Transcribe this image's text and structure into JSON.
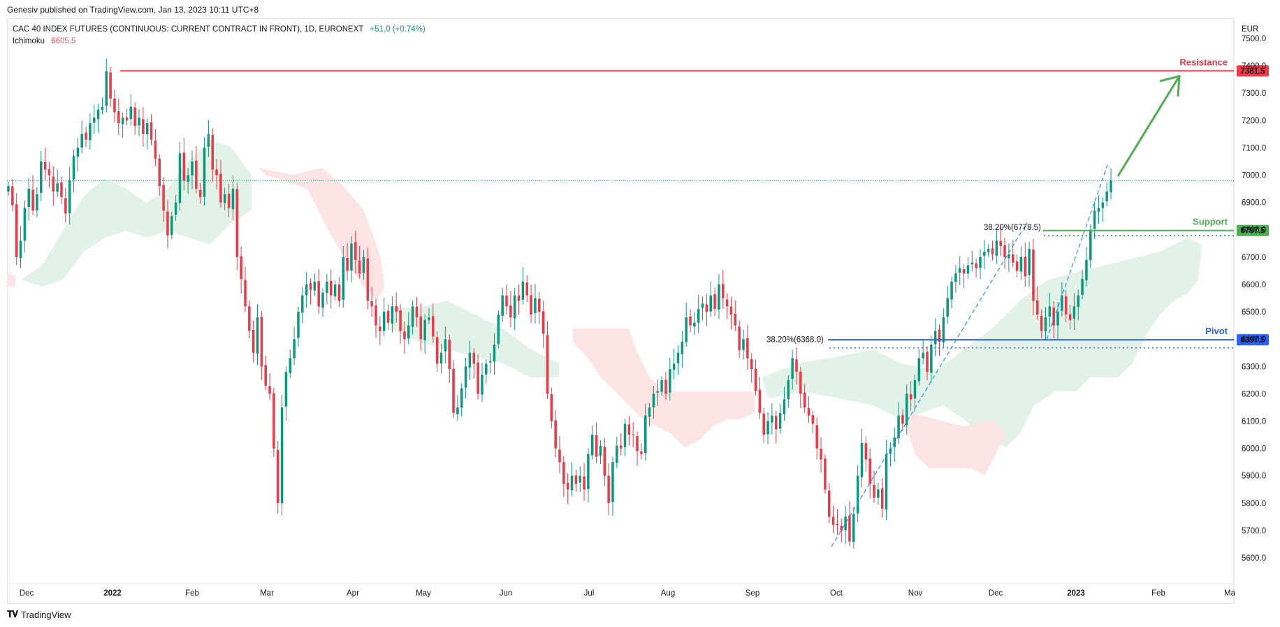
{
  "header": {
    "published": "Genesiv published on TradingView.com, Jan 13, 2023 10:11 UTC+8"
  },
  "legend": {
    "symbol": "CAC 40 INDEX FUTURES (CONTINUOUS: CURRENT CONTRACT IN FRONT), 1D, EURONEXT",
    "change": "+51.0 (+0.74%)",
    "indicator_name": "Ichimoku",
    "indicator_value": "6605.5"
  },
  "footer": {
    "brand": "TradingView",
    "logo": "tradingview-logo-icon"
  },
  "colors": {
    "up": "#089981",
    "down": "#f23645",
    "resistance": "#f23645",
    "support": "#4caf50",
    "pivot": "#2962ff",
    "fib": "#2196f3",
    "cloud_up": "#e3f2e6",
    "cloud_down": "#fde4e4"
  },
  "chart_data": {
    "type": "candlestick",
    "currency": "EUR",
    "ylim": [
      5550,
      7550
    ],
    "y_ticks": [
      5600,
      5700,
      5800,
      5900,
      6000,
      6100,
      6200,
      6300,
      6400,
      6500,
      6600,
      6700,
      6800,
      6900,
      7000,
      7100,
      7200,
      7300,
      7400,
      7500
    ],
    "x_ticks": [
      "Dec",
      "2022",
      "Feb",
      "Mar",
      "Apr",
      "May",
      "Jun",
      "Jul",
      "Aug",
      "Sep",
      "Oct",
      "Nov",
      "Dec",
      "2023",
      "Feb",
      "Ma"
    ],
    "x_ticks_bold": [
      "2022",
      "2023"
    ],
    "last_price": 6980,
    "levels": [
      {
        "name": "Resistance",
        "value": 7381.5,
        "label": "7381.5",
        "color": "#f23645"
      },
      {
        "name": "Support",
        "value": 6797.5,
        "label": "6797.5",
        "color": "#4caf50"
      },
      {
        "name": "Pivot",
        "value": 6397.5,
        "label": "6397.5",
        "color": "#2962ff"
      }
    ],
    "fib_labels": [
      {
        "text": "38.20%(6778.5)",
        "value": 6778.5
      },
      {
        "text": "38.20%(6368.0)",
        "value": 6368.0
      }
    ],
    "dotted_levels": [
      6778.5,
      6368.0
    ],
    "closes": [
      6960,
      6890,
      6700,
      6760,
      6880,
      6950,
      6870,
      6930,
      7050,
      7020,
      7000,
      6940,
      6970,
      6920,
      6860,
      6980,
      7070,
      7100,
      7150,
      7130,
      7190,
      7210,
      7240,
      7250,
      7380,
      7280,
      7230,
      7190,
      7210,
      7200,
      7250,
      7180,
      7210,
      7150,
      7190,
      7130,
      7060,
      6960,
      6870,
      6780,
      6850,
      6900,
      7080,
      6980,
      7000,
      7050,
      6950,
      6920,
      7100,
      7150,
      7020,
      7000,
      6900,
      6930,
      6880,
      6950,
      6700,
      6620,
      6520,
      6430,
      6350,
      6480,
      6300,
      6230,
      6200,
      6000,
      5800,
      6150,
      6280,
      6330,
      6400,
      6500,
      6560,
      6600,
      6580,
      6610,
      6520,
      6570,
      6610,
      6560,
      6600,
      6540,
      6700,
      6650,
      6750,
      6690,
      6640,
      6700,
      6540,
      6520,
      6450,
      6430,
      6500,
      6460,
      6520,
      6500,
      6430,
      6400,
      6450,
      6520,
      6480,
      6400,
      6470,
      6480,
      6410,
      6310,
      6350,
      6400,
      6290,
      6130,
      6150,
      6220,
      6300,
      6350,
      6310,
      6200,
      6270,
      6310,
      6320,
      6380,
      6490,
      6560,
      6520,
      6480,
      6560,
      6540,
      6610,
      6560,
      6490,
      6550,
      6500,
      6420,
      6200,
      6100,
      6000,
      5950,
      5870,
      5850,
      5900,
      5870,
      5900,
      5850,
      5980,
      6050,
      5970,
      6010,
      5900,
      5800,
      5950,
      6010,
      6000,
      6090,
      6050,
      6050,
      5990,
      5980,
      6120,
      6150,
      6200,
      6210,
      6250,
      6200,
      6290,
      6310,
      6350,
      6390,
      6480,
      6450,
      6460,
      6510,
      6530,
      6500,
      6560,
      6510,
      6600,
      6550,
      6520,
      6490,
      6450,
      6360,
      6400,
      6330,
      6290,
      6210,
      6130,
      6050,
      6100,
      6120,
      6070,
      6130,
      6180,
      6250,
      6330,
      6280,
      6200,
      6150,
      6120,
      6090,
      6000,
      5960,
      5850,
      5750,
      5720,
      5720,
      5700,
      5750,
      5660,
      5760,
      5900,
      6020,
      5960,
      5870,
      5820,
      5850,
      5780,
      5980,
      6000,
      6040,
      6120,
      6090,
      6200,
      6180,
      6250,
      6330,
      6350,
      6280,
      6380,
      6430,
      6390,
      6480,
      6550,
      6610,
      6640,
      6660,
      6640,
      6670,
      6680,
      6660,
      6700,
      6720,
      6730,
      6710,
      6760,
      6740,
      6700,
      6710,
      6680,
      6650,
      6700,
      6630,
      6730,
      6540,
      6490,
      6430,
      6480,
      6520,
      6450,
      6500,
      6560,
      6490,
      6470,
      6520,
      6560,
      6620,
      6690,
      6800,
      6870,
      6880,
      6900,
      6940,
      6980
    ]
  }
}
